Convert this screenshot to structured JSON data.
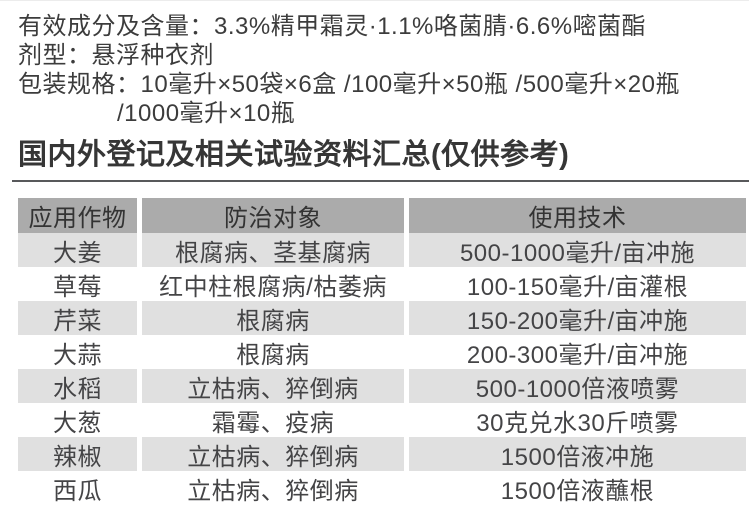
{
  "info": {
    "active_ingredients": "有效成分及含量：3.3%精甲霜灵·1.1%咯菌腈·6.6%嘧菌酯",
    "formulation": "剂型：悬浮种衣剂",
    "packaging_line1": "包装规格：10毫升×50袋×6盒 /100毫升×50瓶 /500毫升×20瓶",
    "packaging_line2": "/1000毫升×10瓶"
  },
  "section_title": "国内外登记及相关试验资料汇总(仅供参考)",
  "table": {
    "headers": [
      "应用作物",
      "防治对象",
      "使用技术"
    ],
    "rows": [
      {
        "crop": "大姜",
        "target": "根腐病、茎基腐病",
        "usage": "500-1000毫升/亩冲施"
      },
      {
        "crop": "草莓",
        "target": "红中柱根腐病/枯萎病",
        "usage": "100-150毫升/亩灌根"
      },
      {
        "crop": "芹菜",
        "target": "根腐病",
        "usage": "150-200毫升/亩冲施"
      },
      {
        "crop": "大蒜",
        "target": "根腐病",
        "usage": "200-300毫升/亩冲施"
      },
      {
        "crop": "水稻",
        "target": "立枯病、猝倒病",
        "usage": "500-1000倍液喷雾"
      },
      {
        "crop": "大葱",
        "target": "霜霉、疫病",
        "usage": "30克兑水30斤喷雾"
      },
      {
        "crop": "辣椒",
        "target": "立枯病、猝倒病",
        "usage": "1500倍液冲施"
      },
      {
        "crop": "西瓜",
        "target": "立枯病、猝倒病",
        "usage": "1500倍液蘸根"
      }
    ]
  },
  "colors": {
    "header_bg": "#ababab",
    "alt_row_bg": "#e0e0e0",
    "rule": "#58595b",
    "text": "#3c3c3c"
  }
}
